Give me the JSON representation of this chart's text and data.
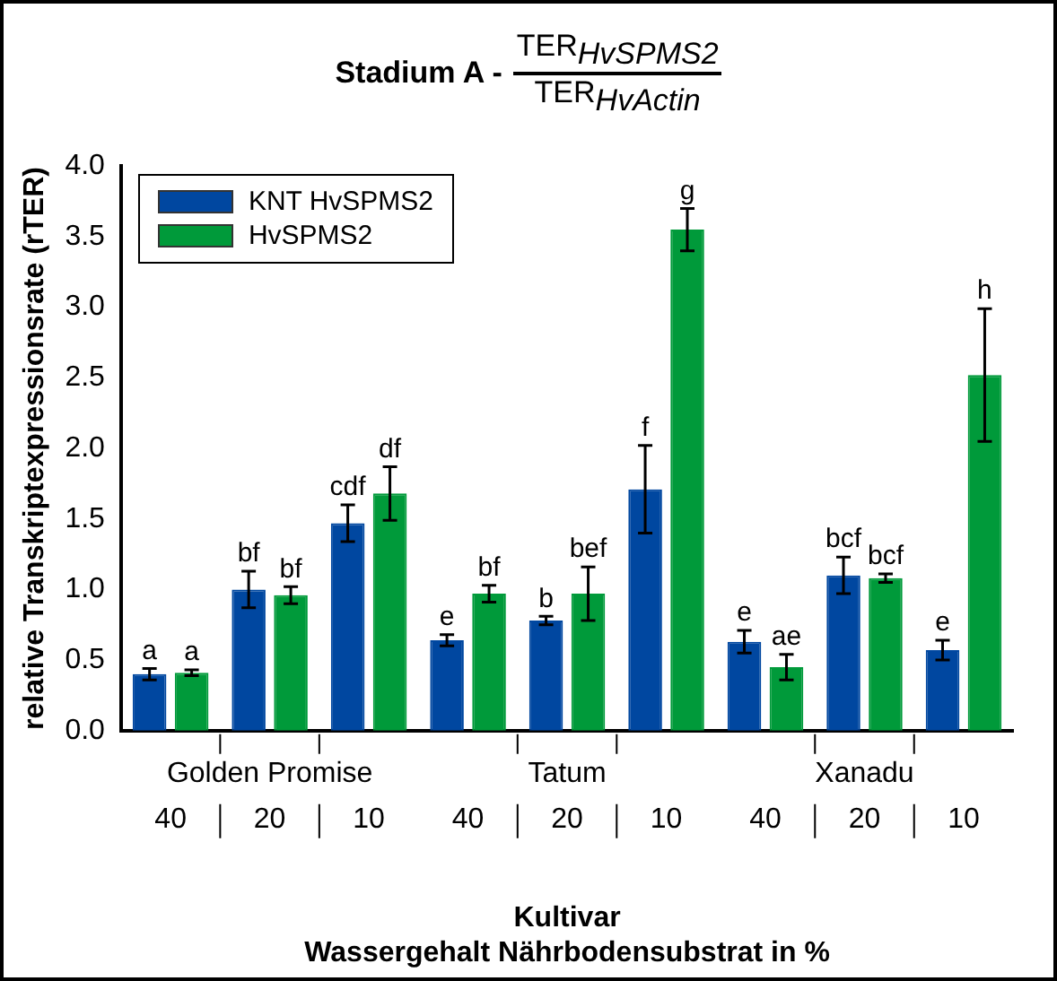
{
  "chart_data": {
    "type": "bar",
    "title": "Stadium A - TER$_{HvSPMS2}$",
    "subtitle": "TER$_{HvActin}$",
    "xlabel": "Kultivar\nWassergehalt Nährbodensubstrat in %",
    "ylabel": "relative Transkriptexpressionsrate (rTER)",
    "categories": [
      "40",
      "20",
      "10",
      "40",
      "20",
      "10",
      "40",
      "20",
      "10"
    ],
    "annotations": [
      "Golden Promise",
      "Tatum",
      "Xanadu"
    ],
    "series": [
      {
        "name": "KNT HvSPMS2",
        "color": "#0047a0",
        "values": [
          0.4,
          1.0,
          1.47,
          0.64,
          0.78,
          1.71,
          0.63,
          1.1,
          0.57
        ],
        "errors": [
          0.04,
          0.13,
          0.13,
          0.04,
          0.03,
          0.31,
          0.08,
          0.13,
          0.07
        ],
        "value_labels": [
          "a",
          "bf",
          "cdf",
          "e",
          "b",
          "f",
          "e",
          "bcf",
          "e"
        ]
      },
      {
        "name": "HvSPMS2",
        "color": "#009a3a",
        "values": [
          0.41,
          0.96,
          1.68,
          0.97,
          0.97,
          3.55,
          0.45,
          1.08,
          2.52
        ],
        "errors": [
          0.02,
          0.06,
          0.19,
          0.06,
          0.19,
          0.15,
          0.09,
          0.03,
          0.47
        ],
        "value_labels": [
          "a",
          "bf",
          "df",
          "bf",
          "bef",
          "g",
          "ae",
          "bcf",
          "h"
        ]
      }
    ],
    "ylim": [
      0,
      4
    ],
    "yticks": [
      {
        "value": 0,
        "label": "0.0"
      },
      {
        "value": 0.5,
        "label": "0.5"
      },
      {
        "value": 1,
        "label": "1.0"
      },
      {
        "value": 1.5,
        "label": "1.5"
      },
      {
        "value": 2,
        "label": "2.0"
      },
      {
        "value": 2.5,
        "label": "2.5"
      },
      {
        "value": 3,
        "label": "3.0"
      },
      {
        "value": 3.5,
        "label": "3.5"
      },
      {
        "value": 4,
        "label": "4.0"
      }
    ],
    "grid": false,
    "legend": "top left"
  }
}
